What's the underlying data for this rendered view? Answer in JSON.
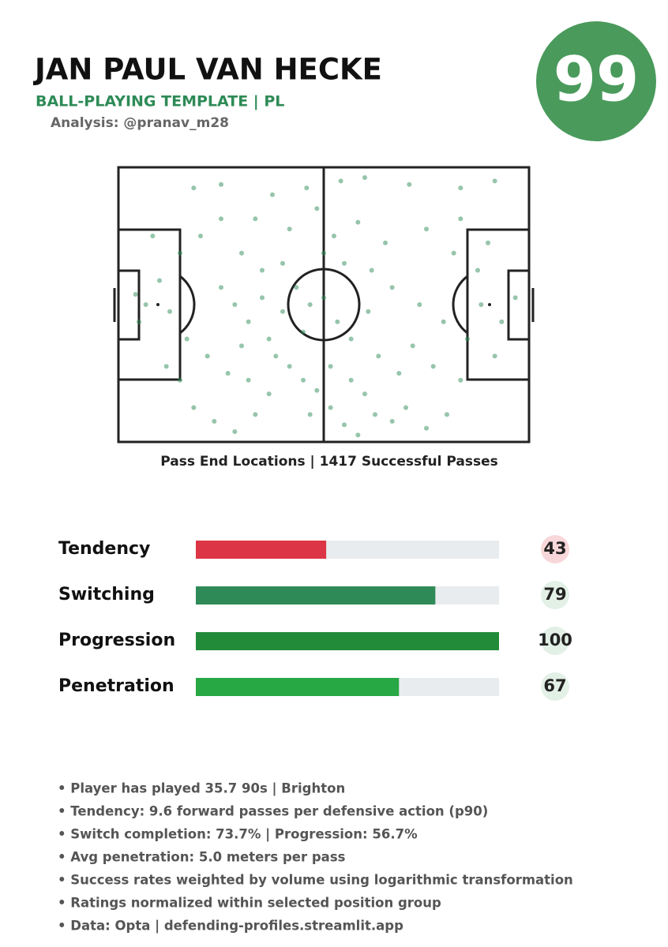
{
  "header": {
    "name": "JAN PAUL VAN HECKE",
    "template": "BALL-PLAYING TEMPLATE | PL",
    "credit": "Analysis: @pranav_m28",
    "rating": 99,
    "rating_color": "#4a9a5c"
  },
  "pitch": {
    "caption": "Pass End Locations | 1417 Successful Passes",
    "dot_color": "#2e8b57",
    "xlim": [
      0,
      120
    ],
    "ylim": [
      0,
      80
    ],
    "points": {
      "x": [
        5,
        8,
        12,
        6,
        15,
        22,
        30,
        45,
        55,
        65,
        72,
        85,
        100,
        110,
        40,
        50,
        58,
        63,
        70,
        78,
        90,
        98,
        105,
        36,
        42,
        48,
        52,
        56,
        60,
        64,
        68,
        73,
        80,
        88,
        95,
        102,
        110,
        30,
        34,
        38,
        44,
        46,
        50,
        54,
        58,
        62,
        66,
        70,
        75,
        80,
        84,
        90,
        96,
        22,
        28,
        34,
        40,
        44,
        26,
        32,
        38,
        20,
        18,
        24,
        30,
        10,
        14,
        18,
        76,
        82,
        86,
        92,
        100,
        106,
        112,
        116,
        74,
        66,
        60,
        54,
        48,
        42,
        36,
        100,
        108,
        62,
        56,
        68,
        72
      ],
      "y": [
        37,
        40,
        33,
        45,
        42,
        6,
        5,
        8,
        6,
        4,
        3,
        5,
        6,
        4,
        15,
        18,
        12,
        20,
        16,
        22,
        18,
        25,
        30,
        25,
        30,
        28,
        35,
        40,
        38,
        45,
        50,
        42,
        35,
        40,
        45,
        50,
        55,
        35,
        40,
        45,
        50,
        55,
        58,
        62,
        65,
        70,
        75,
        78,
        72,
        74,
        70,
        76,
        72,
        70,
        74,
        77,
        72,
        66,
        55,
        60,
        62,
        50,
        25,
        20,
        15,
        20,
        58,
        62,
        55,
        60,
        52,
        58,
        62,
        40,
        45,
        38,
        30,
        28,
        25,
        48,
        42,
        38,
        52,
        15,
        22,
        58,
        72,
        62,
        66
      ]
    }
  },
  "ratings": {
    "xlim": [
      0,
      100
    ],
    "track_color": "#e9ecef",
    "items": [
      {
        "label": "Tendency",
        "value": 43,
        "color": "#dc3545",
        "badge_color": "#f8d7da"
      },
      {
        "label": "Switching",
        "value": 79,
        "color": "#2e8b57",
        "badge_color": "#e2f0e6"
      },
      {
        "label": "Progression",
        "value": 100,
        "color": "#228b3a",
        "badge_color": "#e2f0e6"
      },
      {
        "label": "Penetration",
        "value": 67,
        "color": "#28a745",
        "badge_color": "#e2f0e6"
      }
    ]
  },
  "notes": [
    "• Player has played 35.7 90s | Brighton",
    "• Tendency: 9.6 forward passes per defensive action (p90)",
    "• Switch completion: 73.7% | Progression: 56.7%",
    "• Avg penetration: 5.0 meters per pass",
    "• Success rates weighted by volume using logarithmic transformation",
    "• Ratings normalized within selected position group",
    "• Data: Opta | defending-profiles.streamlit.app"
  ]
}
